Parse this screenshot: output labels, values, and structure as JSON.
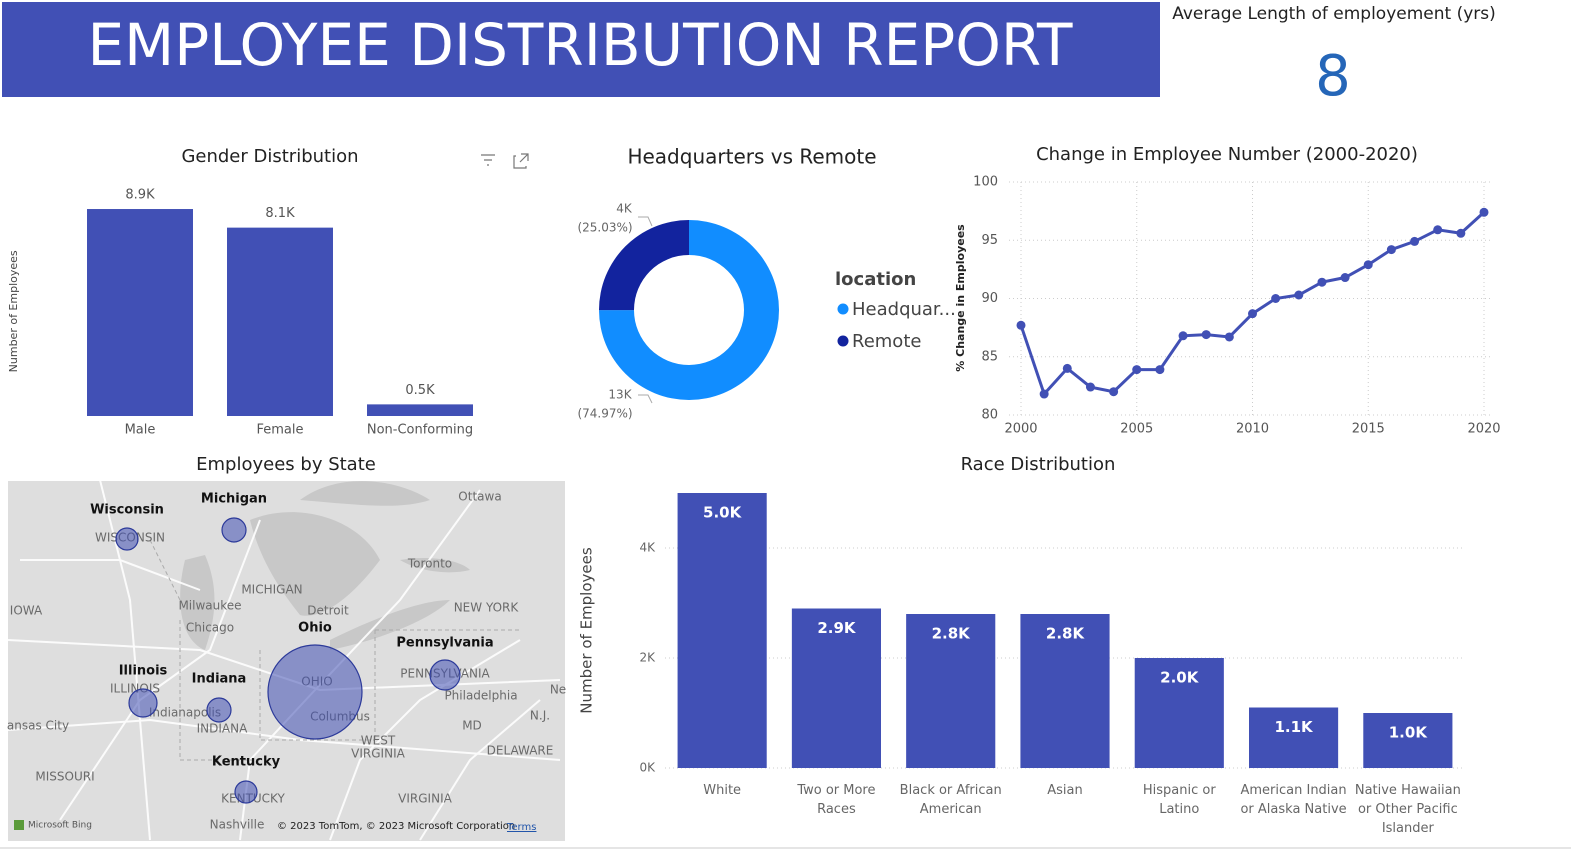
{
  "header": {
    "title": "EMPLOYEE DISTRIBUTION REPORT"
  },
  "kpi": {
    "label": "Average Length of employement (yrs)",
    "value": 8
  },
  "chart_data": [
    {
      "type": "bar",
      "title": "Gender Distribution",
      "y_label": "Number of Employees",
      "categories": [
        "Male",
        "Female",
        "Non-Conforming"
      ],
      "values": [
        8900,
        8100,
        500
      ],
      "value_labels": [
        "8.9K",
        "8.1K",
        "0.5K"
      ],
      "color": "#4150b5",
      "ylim": [
        0,
        9000
      ]
    },
    {
      "type": "donut",
      "title": "Headquarters vs Remote",
      "legend_title": "location",
      "categories": [
        "Headquar...",
        "Remote"
      ],
      "values": [
        13000,
        4000
      ],
      "value_labels": [
        "13K",
        "4K"
      ],
      "percents": [
        74.97,
        25.03
      ],
      "percent_labels": [
        "(74.97%)",
        "(25.03%)"
      ],
      "colors": [
        "#118dff",
        "#12239e"
      ]
    },
    {
      "type": "line",
      "title": "Change in Employee Number (2000-2020)",
      "y_label": "% Change in Employees",
      "x": [
        2000,
        2001,
        2002,
        2003,
        2004,
        2005,
        2006,
        2007,
        2008,
        2009,
        2010,
        2011,
        2012,
        2013,
        2014,
        2015,
        2016,
        2017,
        2018,
        2019,
        2020
      ],
      "values": [
        87.7,
        81.8,
        84.0,
        82.4,
        82.0,
        83.9,
        83.9,
        86.8,
        86.9,
        86.7,
        88.7,
        90.0,
        90.3,
        91.4,
        91.8,
        92.9,
        94.2,
        94.9,
        95.9,
        95.6,
        97.4
      ],
      "color": "#4150b5",
      "xlim": [
        2000,
        2020
      ],
      "xticks": [
        2000,
        2005,
        2010,
        2015,
        2020
      ],
      "ylim": [
        80,
        100
      ],
      "yticks": [
        80,
        85,
        90,
        95,
        100
      ],
      "grid": true
    },
    {
      "type": "bar",
      "title": "Race Distribution",
      "y_label": "Number of Employees",
      "categories": [
        "White",
        "Two or More Races",
        "Black or African American",
        "Asian",
        "Hispanic or Latino",
        "American Indian or Alaska Native",
        "Native Hawaiian or Other Pacific Islander"
      ],
      "values": [
        5000,
        2900,
        2800,
        2800,
        2000,
        1100,
        1000
      ],
      "value_labels": [
        "5.0K",
        "2.9K",
        "2.8K",
        "2.8K",
        "2.0K",
        "1.1K",
        "1.0K"
      ],
      "color": "#4150b5",
      "ylim": [
        0,
        5000
      ],
      "yticks": [
        {
          "value": 0,
          "label": "0K"
        },
        {
          "value": 2000,
          "label": "2K"
        },
        {
          "value": 4000,
          "label": "4K"
        }
      ],
      "grid": true
    }
  ],
  "map": {
    "title": "Employees by State",
    "states": [
      "Wisconsin",
      "Michigan",
      "Ohio",
      "Pennsylvania",
      "Illinois",
      "Indiana",
      "Kentucky"
    ],
    "places": [
      "Ottawa",
      "WISCONSIN",
      "MICHIGAN",
      "Toronto",
      "IOWA",
      "Milwaukee",
      "Detroit",
      "NEW YORK",
      "Chicago",
      "ILLINOIS",
      "Indianapolis",
      "OHIO",
      "PENNSYLVANIA",
      "Philadelphia",
      "Columbus",
      "INDIANA",
      "MD",
      "N.J.",
      "ansas City",
      "WEST",
      "VIRGINIA",
      "DELAWARE",
      "MISSOURI",
      "KENTUCKY",
      "VIRGINIA",
      "Nashville",
      "Ne"
    ],
    "logo": "Microsoft Bing",
    "attribution": "© 2023 TomTom, © 2023 Microsoft Corporation",
    "terms": "Terms"
  }
}
